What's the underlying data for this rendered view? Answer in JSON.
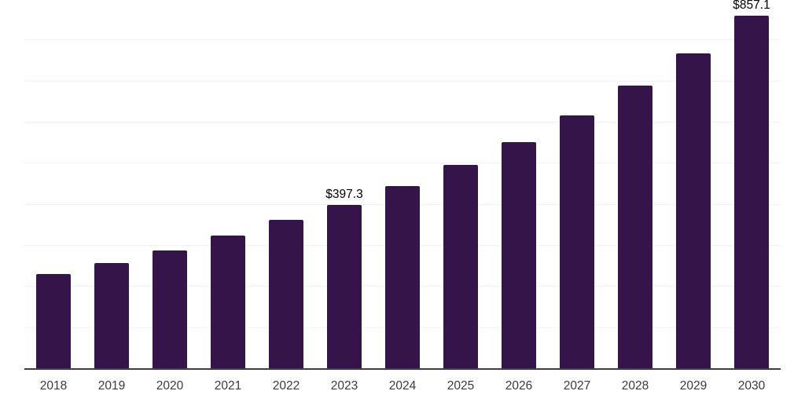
{
  "chart_data": {
    "type": "bar",
    "categories": [
      "2018",
      "2019",
      "2020",
      "2021",
      "2022",
      "2023",
      "2024",
      "2025",
      "2026",
      "2027",
      "2028",
      "2029",
      "2030"
    ],
    "values": [
      229.2,
      256.0,
      286.6,
      322.4,
      360.7,
      397.3,
      443.6,
      494.7,
      550.8,
      614.6,
      687.3,
      765.8,
      857.1
    ],
    "data_labels": [
      {
        "category": "2023",
        "label": "$397.3"
      },
      {
        "category": "2030",
        "label": "$857.1"
      }
    ],
    "title": "",
    "xlabel": "",
    "ylabel": "",
    "ylim": [
      0,
      900
    ],
    "gridline_step": 100,
    "grid": "horizontal",
    "legend": "none",
    "colors": {
      "bar": "#351549",
      "axis_line": "#3f3f3f",
      "gridline": "#f1f1f1",
      "tick_label": "#3a3a3a",
      "value_label": "#000000",
      "background": "#ffffff"
    }
  }
}
